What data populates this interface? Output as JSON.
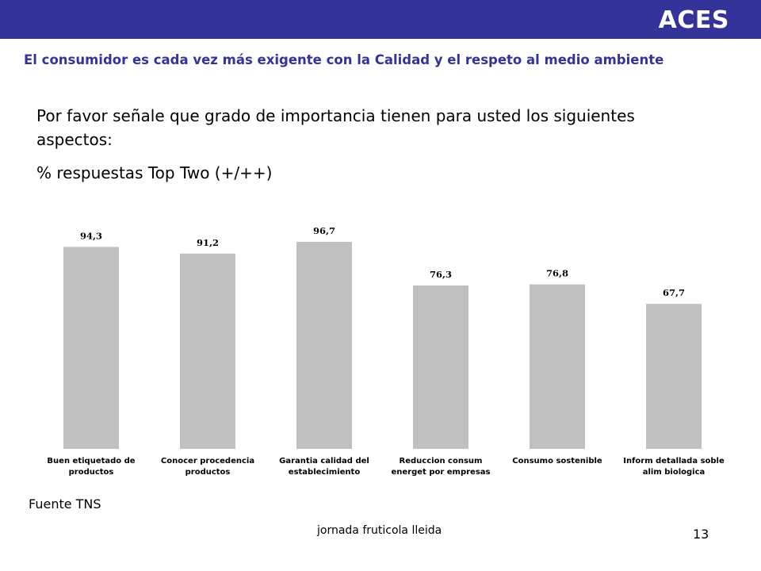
{
  "header": {
    "brand": "ACES",
    "subtitle": "El consumidor es cada vez más exigente con la Calidad y el respeto al medio ambiente",
    "bar_color": "#333399"
  },
  "question": "Por favor señale que grado de importancia tienen para usted los siguientes aspectos:",
  "metric_label": "% respuestas Top Two (+/++)",
  "chart_data": {
    "type": "bar",
    "categories": [
      [
        "Buen etiquetado de",
        "productos"
      ],
      [
        "Conocer procedencia",
        "productos"
      ],
      [
        "Garantia calidad del",
        "establecimiento"
      ],
      [
        "Reduccion consum",
        "energet por empresas"
      ],
      [
        "Consumo sostenible"
      ],
      [
        "Inform detallada soble",
        "alim biologica"
      ]
    ],
    "values": [
      94.3,
      91.2,
      96.7,
      76.3,
      76.8,
      67.7
    ],
    "value_labels": [
      "94,3",
      "91,2",
      "96,7",
      "76,3",
      "76,8",
      "67,7"
    ],
    "bar_color": "#c0c0c0",
    "ylim": [
      0,
      100
    ],
    "grid": false,
    "legend": "none"
  },
  "source": "Fuente TNS",
  "footer": "jornada fruticola lleida",
  "page_number": "13"
}
